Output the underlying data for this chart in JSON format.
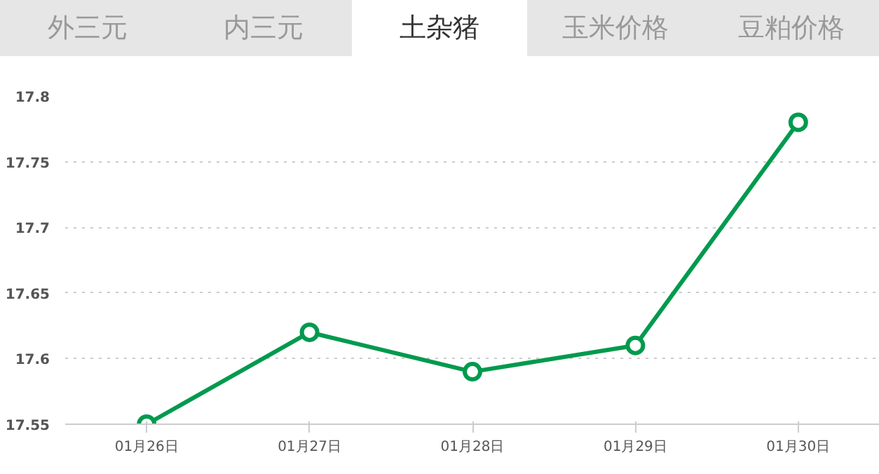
{
  "chart_data": {
    "type": "line",
    "annotations": [
      "外三元",
      "内三元",
      "土杂猪",
      "玉米价格",
      "豆粕价格"
    ],
    "categories": [
      "01月26日",
      "01月27日",
      "01月28日",
      "01月29日",
      "01月30日"
    ],
    "series": [
      {
        "color": "#009a4e",
        "values": [
          17.55,
          17.62,
          17.59,
          17.61,
          17.78
        ]
      }
    ],
    "ylim": [
      17.55,
      17.8
    ],
    "yticks": [
      17.55,
      17.6,
      17.65,
      17.7,
      17.75,
      17.8
    ],
    "grid": "y",
    "marker": "circle",
    "line_style": "solid"
  }
}
